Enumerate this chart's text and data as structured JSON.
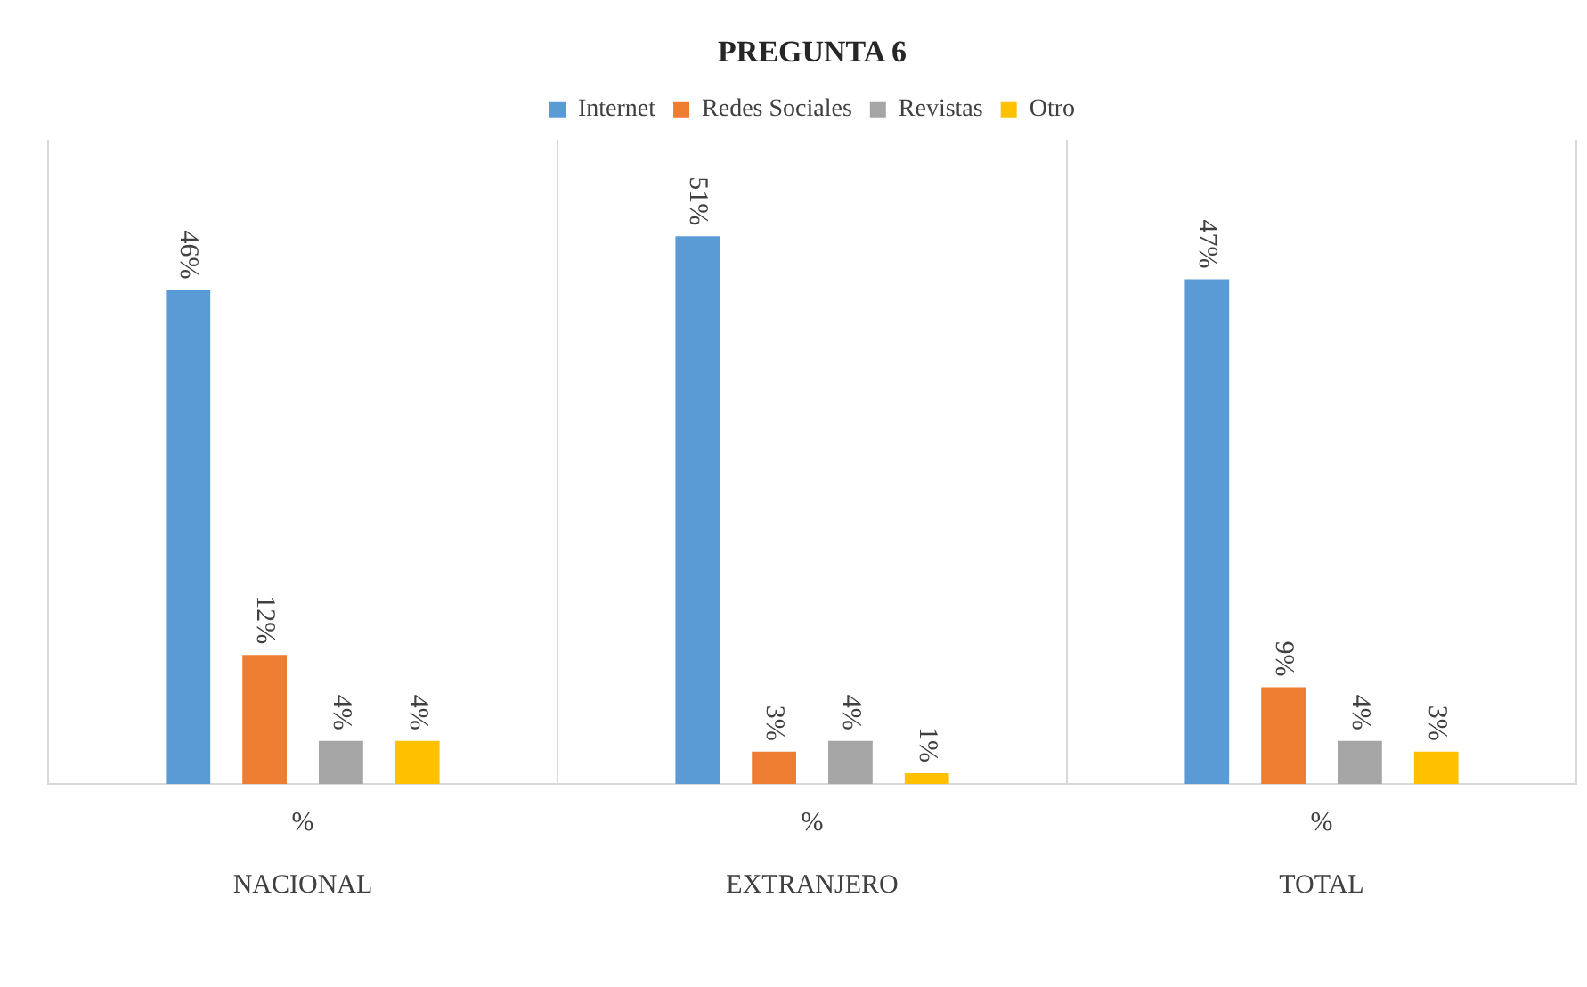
{
  "chart_data": {
    "type": "bar",
    "title": "PREGUNTA 6",
    "categories": [
      "NACIONAL",
      "EXTRANJERO",
      "TOTAL"
    ],
    "series": [
      {
        "name": "Internet",
        "color": "#5b9bd5",
        "values": [
          46,
          51,
          47
        ],
        "value_labels": [
          "46%",
          "51%",
          "47%"
        ]
      },
      {
        "name": "Redes Sociales",
        "color": "#ed7d31",
        "values": [
          12,
          3,
          9
        ],
        "value_labels": [
          "12%",
          "3%",
          "9%"
        ]
      },
      {
        "name": "Revistas",
        "color": "#a5a5a5",
        "values": [
          4,
          4,
          4
        ],
        "value_labels": [
          "4%",
          "4%",
          "4%"
        ]
      },
      {
        "name": "Otro",
        "color": "#ffc000",
        "values": [
          4,
          1,
          3
        ],
        "value_labels": [
          "4%",
          "1%",
          "3%"
        ]
      }
    ],
    "annotations": [
      "%",
      "%",
      "%"
    ],
    "legend": "top",
    "grid": "x"
  }
}
